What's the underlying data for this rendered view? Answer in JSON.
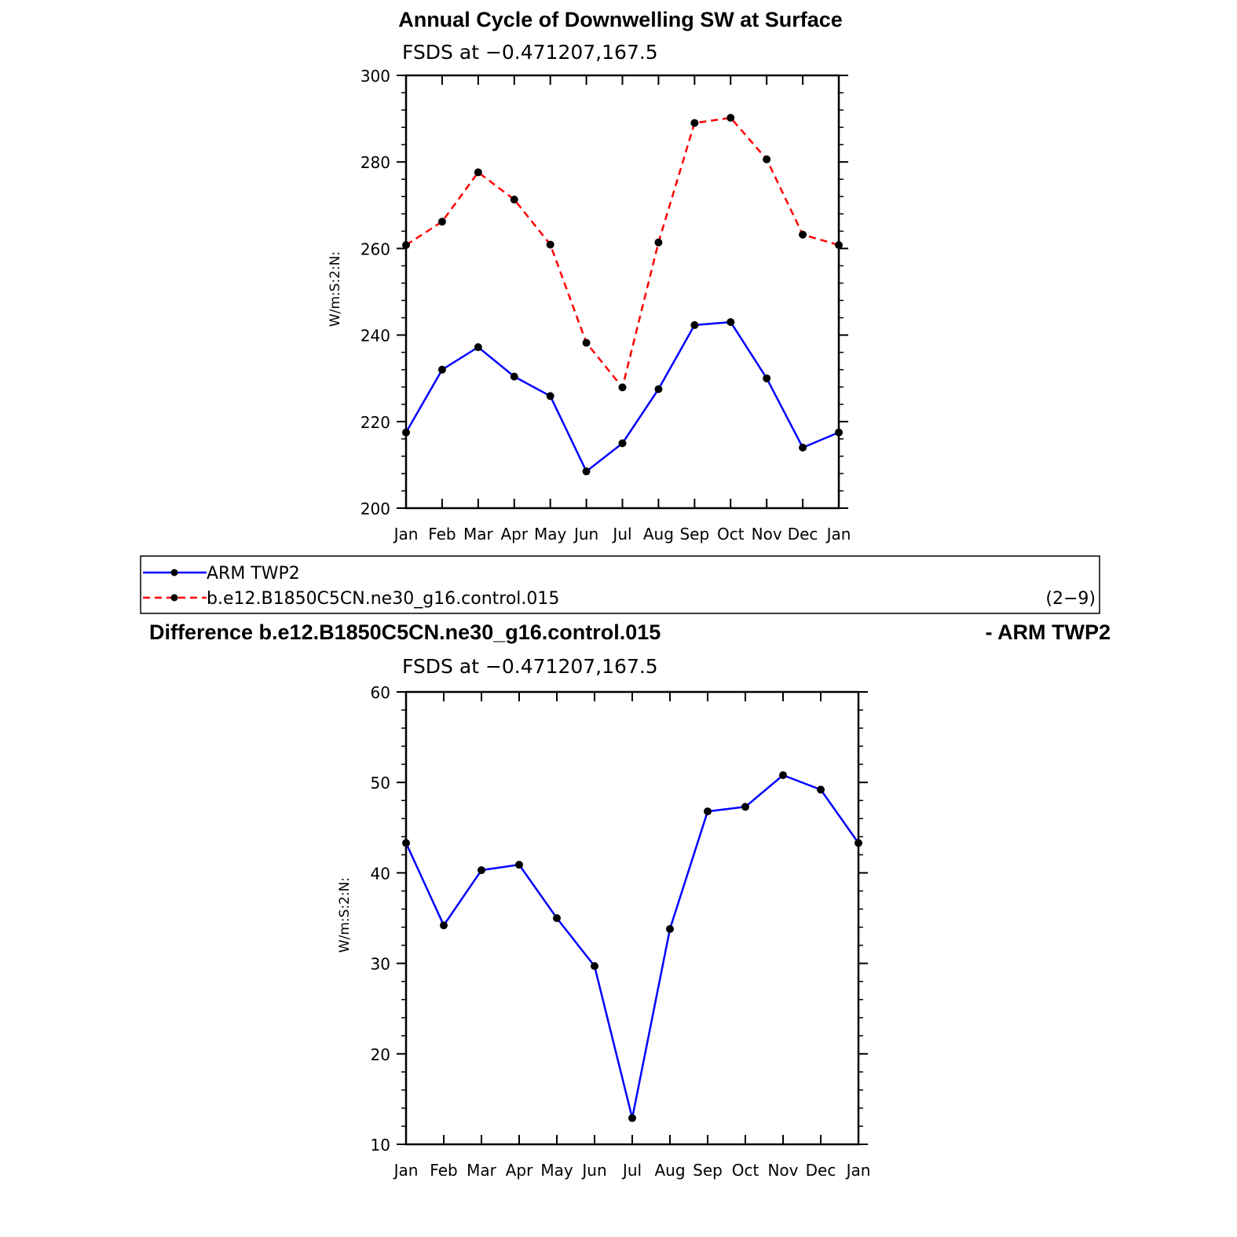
{
  "chart_data": [
    {
      "type": "line",
      "title": "Annual Cycle of Downwelling SW at Surface",
      "subtitle": "FSDS at −0.471207,167.5",
      "ylabel": "W/m:S:2:N:",
      "ylim": [
        200,
        300
      ],
      "yticks": [
        "200",
        "220",
        "240",
        "260",
        "280",
        "300"
      ],
      "categories": [
        "Jan",
        "Feb",
        "Mar",
        "Apr",
        "May",
        "Jun",
        "Jul",
        "Aug",
        "Sep",
        "Oct",
        "Nov",
        "Dec",
        "Jan"
      ],
      "series": [
        {
          "name": "ARM TWP2",
          "color": "#0000ff",
          "dash": "solid",
          "values": [
            217.5,
            232,
            237.2,
            230.4,
            225.9,
            208.5,
            215,
            227.5,
            242.3,
            243,
            230,
            214,
            217.5
          ]
        },
        {
          "name": "b.e12.B1850C5CN.ne30_g16.control.015",
          "color": "#ff0000",
          "dash": "dashed",
          "values": [
            260.8,
            266.2,
            277.6,
            271.3,
            260.9,
            238.2,
            227.9,
            261.4,
            289,
            290.2,
            280.6,
            263.2,
            260.8
          ]
        }
      ]
    },
    {
      "type": "line",
      "title": "Difference b.e12.B1850C5CN.ne30_g16.control.015",
      "title_right": "- ARM TWP2",
      "subtitle": "FSDS at −0.471207,167.5",
      "ylabel": "W/m:S:2:N:",
      "ylim": [
        10,
        60
      ],
      "yticks": [
        "10",
        "20",
        "30",
        "40",
        "50",
        "60"
      ],
      "categories": [
        "Jan",
        "Feb",
        "Mar",
        "Apr",
        "May",
        "Jun",
        "Jul",
        "Aug",
        "Sep",
        "Oct",
        "Nov",
        "Dec",
        "Jan"
      ],
      "series": [
        {
          "color": "#0000ff",
          "dash": "solid",
          "values": [
            43.3,
            34.2,
            40.3,
            40.9,
            35,
            29.7,
            12.9,
            33.8,
            46.8,
            47.3,
            50.8,
            49.2,
            43.3
          ]
        }
      ]
    }
  ],
  "legend": {
    "items": [
      {
        "label": "ARM TWP2"
      },
      {
        "label": "b.e12.B1850C5CN.ne30_g16.control.015"
      }
    ],
    "note": "(2−9)"
  }
}
